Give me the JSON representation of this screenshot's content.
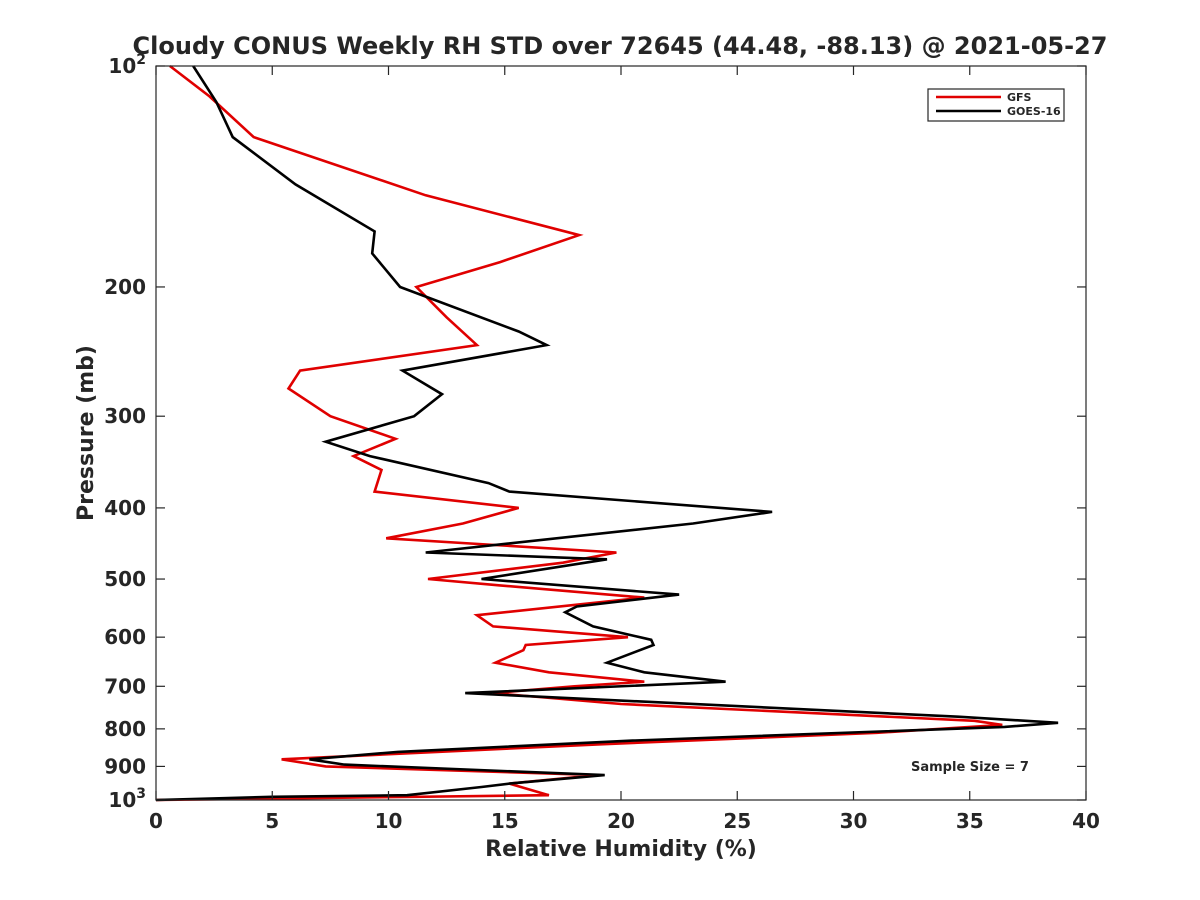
{
  "chart_data": {
    "type": "line",
    "title": "Cloudy CONUS Weekly RH STD over 72645 (44.48, -88.13) @ 2021-05-27",
    "xlabel": "Relative Humidity (%)",
    "ylabel": "Pressure (mb)",
    "xlim": [
      0,
      40
    ],
    "ylim": [
      100,
      1000
    ],
    "yscale": "log",
    "y_reversed": true,
    "x_ticks": [
      0,
      5,
      10,
      15,
      20,
      25,
      30,
      35,
      40
    ],
    "y_ticks": [
      {
        "value": 100,
        "base": "10",
        "exp": "2"
      },
      {
        "value": 200,
        "label": "200"
      },
      {
        "value": 300,
        "label": "300"
      },
      {
        "value": 400,
        "label": "400"
      },
      {
        "value": 500,
        "label": "500"
      },
      {
        "value": 600,
        "label": "600"
      },
      {
        "value": 700,
        "label": "700"
      },
      {
        "value": 800,
        "label": "800"
      },
      {
        "value": 900,
        "label": "900"
      },
      {
        "value": 1000,
        "base": "10",
        "exp": "3"
      }
    ],
    "grid": false,
    "legend_position": "top-right",
    "annotation": "Sample Size = 7",
    "series": [
      {
        "name": "GFS",
        "color": "#e00000",
        "points": [
          [
            0.6,
            100
          ],
          [
            2.3,
            110
          ],
          [
            4.2,
            125
          ],
          [
            11.6,
            150
          ],
          [
            18.2,
            170
          ],
          [
            14.8,
            185
          ],
          [
            11.2,
            200
          ],
          [
            12.5,
            220
          ],
          [
            13.8,
            240
          ],
          [
            6.2,
            260
          ],
          [
            5.7,
            275
          ],
          [
            7.5,
            300
          ],
          [
            10.3,
            322
          ],
          [
            8.5,
            340
          ],
          [
            9.7,
            355
          ],
          [
            9.4,
            380
          ],
          [
            15.6,
            400
          ],
          [
            13.2,
            420
          ],
          [
            9.9,
            440
          ],
          [
            19.8,
            460
          ],
          [
            17.5,
            475
          ],
          [
            11.7,
            500
          ],
          [
            14.8,
            510
          ],
          [
            21.0,
            530
          ],
          [
            13.8,
            560
          ],
          [
            14.5,
            580
          ],
          [
            20.3,
            600
          ],
          [
            15.9,
            615
          ],
          [
            15.8,
            625
          ],
          [
            14.6,
            650
          ],
          [
            16.9,
            670
          ],
          [
            21.0,
            690
          ],
          [
            18.0,
            700
          ],
          [
            14.5,
            715
          ],
          [
            20.0,
            740
          ],
          [
            35.2,
            780
          ],
          [
            36.4,
            790
          ],
          [
            31.0,
            810
          ],
          [
            19.0,
            840
          ],
          [
            5.4,
            880
          ],
          [
            7.3,
            900
          ],
          [
            19.0,
            925
          ],
          [
            15.2,
            950
          ],
          [
            16.9,
            985
          ],
          [
            0.0,
            1000
          ]
        ]
      },
      {
        "name": "GOES-16",
        "color": "#000000",
        "points": [
          [
            1.6,
            100
          ],
          [
            2.6,
            112
          ],
          [
            3.3,
            125
          ],
          [
            6.0,
            145
          ],
          [
            9.4,
            168
          ],
          [
            9.3,
            180
          ],
          [
            10.5,
            200
          ],
          [
            15.6,
            230
          ],
          [
            16.8,
            240
          ],
          [
            10.6,
            260
          ],
          [
            12.3,
            280
          ],
          [
            11.1,
            300
          ],
          [
            7.3,
            325
          ],
          [
            9.2,
            340
          ],
          [
            14.3,
            370
          ],
          [
            15.2,
            380
          ],
          [
            26.5,
            405
          ],
          [
            23.1,
            420
          ],
          [
            11.6,
            460
          ],
          [
            19.4,
            470
          ],
          [
            14.0,
            500
          ],
          [
            22.5,
            525
          ],
          [
            18.1,
            545
          ],
          [
            17.6,
            555
          ],
          [
            18.8,
            580
          ],
          [
            21.3,
            605
          ],
          [
            21.4,
            615
          ],
          [
            19.4,
            650
          ],
          [
            21.0,
            670
          ],
          [
            24.5,
            690
          ],
          [
            13.3,
            715
          ],
          [
            34.5,
            770
          ],
          [
            38.8,
            785
          ],
          [
            36.5,
            795
          ],
          [
            20.5,
            830
          ],
          [
            10.4,
            860
          ],
          [
            6.6,
            880
          ],
          [
            8.1,
            895
          ],
          [
            19.3,
            925
          ],
          [
            15.2,
            950
          ],
          [
            14.0,
            960
          ],
          [
            10.8,
            985
          ],
          [
            5.0,
            990
          ],
          [
            0.0,
            1000
          ]
        ]
      }
    ]
  }
}
